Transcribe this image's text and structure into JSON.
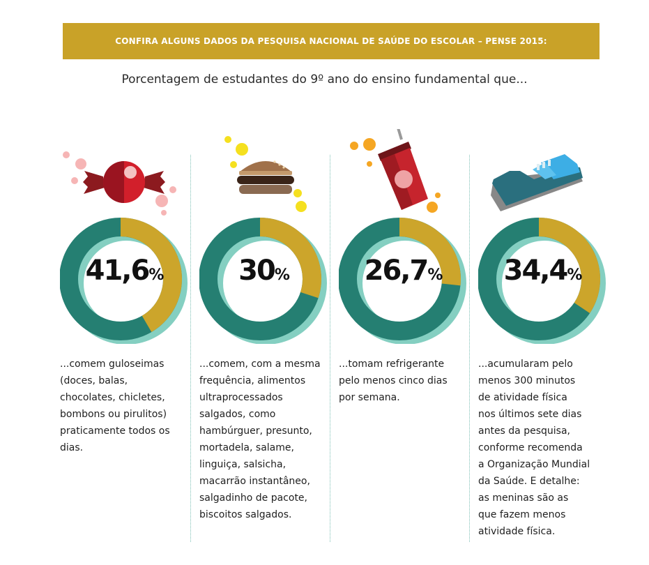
{
  "banner": {
    "title": "CONFIRA ALGUNS DADOS DA PESQUISA NACIONAL DE SAÚDE DO ESCOLAR – PENSE 2015:"
  },
  "subtitle": "Porcentagem de estudantes do 9º ano do ensino fundamental que...",
  "colors": {
    "banner": "#c9a228",
    "ring_main": "#257f72",
    "ring_value": "#cca52b",
    "ring_shadow": "#84cfc1",
    "divider": "#7bbfb4"
  },
  "chart_data": [
    {
      "type": "pie",
      "value": 41.6,
      "value_label": "41,6",
      "unit": "%",
      "icon": "candy-icon",
      "description": "...comem guloseimas\n(doces, balas,\nchocolates, chicletes,\nbombons ou pirulitos)\npraticamente todos os\ndias."
    },
    {
      "type": "pie",
      "value": 30,
      "value_label": "30",
      "unit": "%",
      "icon": "hamburger-icon",
      "description": "...comem, com a mesma\nfrequência, alimentos\nultraprocessados\nsalgados, como\nhambúrguer, presunto,\nmortadela, salame,\nlinguiça, salsicha,\nmacarrão instantâneo,\nsalgadinho de pacote,\nbiscoitos salgados."
    },
    {
      "type": "pie",
      "value": 26.7,
      "value_label": "26,7",
      "unit": "%",
      "icon": "soda-cup-icon",
      "description": "...tomam refrigerante\npelo menos cinco dias\npor semana."
    },
    {
      "type": "pie",
      "value": 34.4,
      "value_label": "34,4",
      "unit": "%",
      "icon": "sneaker-icon",
      "description": "...acumularam pelo\nmenos 300 minutos\nde atividade física\nnos últimos sete dias\nantes da pesquisa,\nconforme recomenda\na Organização Mundial\nda Saúde. E detalhe:\nas meninas são as\nque fazem menos\natividade física."
    }
  ]
}
